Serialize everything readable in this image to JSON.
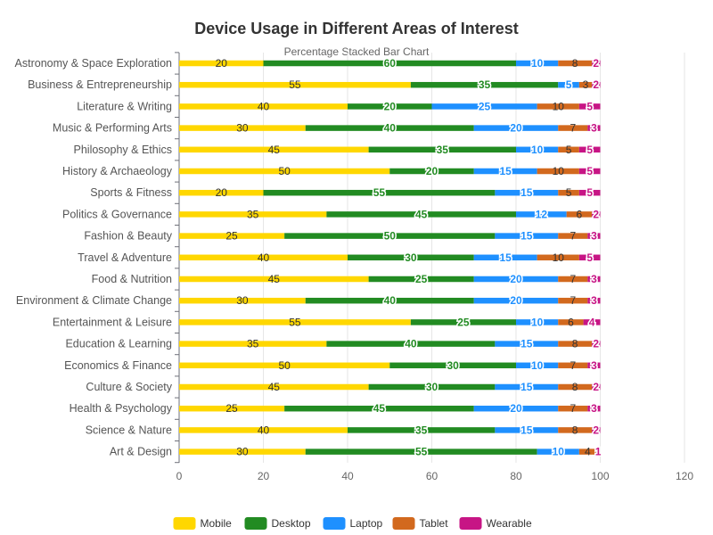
{
  "chart_data": {
    "type": "bar",
    "orientation": "horizontal",
    "stacked": true,
    "title": "Device Usage in Different Areas of Interest",
    "subtitle": "Percentage Stacked Bar Chart",
    "xlabel": "",
    "ylabel": "",
    "xlim": [
      0,
      120
    ],
    "xticks": [
      0,
      20,
      40,
      60,
      80,
      100,
      120
    ],
    "grid": true,
    "legend_position": "bottom",
    "categories": [
      "Astronomy & Space Exploration",
      "Business & Entrepreneurship",
      "Literature & Writing",
      "Music & Performing Arts",
      "Philosophy & Ethics",
      "History & Archaeology",
      "Sports & Fitness",
      "Politics & Governance",
      "Fashion & Beauty",
      "Travel & Adventure",
      "Food & Nutrition",
      "Environment & Climate Change",
      "Entertainment & Leisure",
      "Education & Learning",
      "Economics & Finance",
      "Culture & Society",
      "Health & Psychology",
      "Science & Nature",
      "Art & Design"
    ],
    "series": [
      {
        "name": "Mobile",
        "color": "#FFD700",
        "label_color": "#333333",
        "label_outline": false,
        "values": [
          20,
          55,
          40,
          30,
          45,
          50,
          20,
          35,
          25,
          40,
          45,
          30,
          55,
          35,
          50,
          45,
          25,
          40,
          30
        ]
      },
      {
        "name": "Desktop",
        "color": "#228B22",
        "label_color": "#228B22",
        "label_outline": true,
        "values": [
          60,
          35,
          20,
          40,
          35,
          20,
          55,
          45,
          50,
          30,
          25,
          40,
          25,
          40,
          30,
          30,
          45,
          35,
          55
        ]
      },
      {
        "name": "Laptop",
        "color": "#1E90FF",
        "label_color": "#1E90FF",
        "label_outline": true,
        "values": [
          10,
          5,
          25,
          20,
          10,
          15,
          15,
          12,
          15,
          15,
          20,
          20,
          10,
          15,
          10,
          15,
          20,
          15,
          10
        ]
      },
      {
        "name": "Tablet",
        "color": "#D2691E",
        "label_color": "#333333",
        "label_outline": false,
        "values": [
          8,
          3,
          10,
          7,
          5,
          10,
          5,
          6,
          7,
          10,
          7,
          7,
          6,
          8,
          7,
          8,
          7,
          8,
          4
        ]
      },
      {
        "name": "Wearable",
        "color": "#C71585",
        "label_color": "#C71585",
        "label_outline": true,
        "values": [
          2,
          2,
          5,
          3,
          5,
          5,
          5,
          2,
          3,
          5,
          3,
          3,
          4,
          2,
          3,
          2,
          3,
          2,
          1
        ]
      }
    ]
  }
}
